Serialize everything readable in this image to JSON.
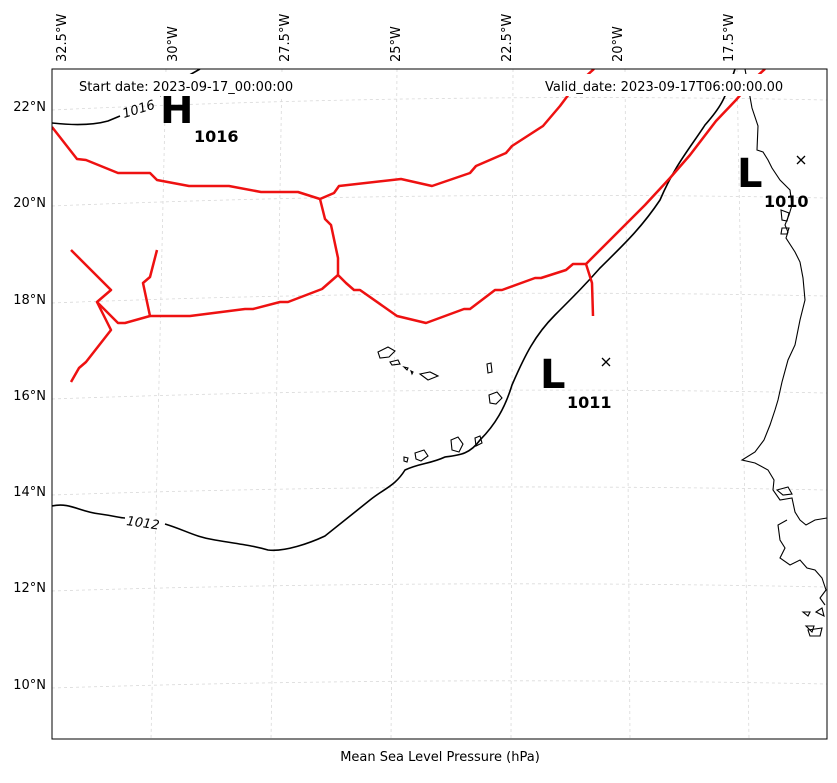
{
  "header": {
    "start_date": "Start date: 2023-09-17_00:00:00",
    "valid_date": "Valid_date: 2023-09-17T06:00:00.00"
  },
  "axis": {
    "xlabel": "Mean Sea Level Pressure (hPa)",
    "lon_labels": [
      "32.5°W",
      "30°W",
      "27.5°W",
      "25°W",
      "22.5°W",
      "20°W",
      "17.5°W"
    ],
    "lat_labels": [
      "22°N",
      "20°N",
      "18°N",
      "16°N",
      "14°N",
      "12°N",
      "10°N"
    ]
  },
  "centers": [
    {
      "type": "H",
      "letter": "H",
      "value": "1016"
    },
    {
      "type": "L",
      "letter": "L",
      "value": "1010"
    },
    {
      "type": "L",
      "letter": "L",
      "value": "1011"
    }
  ],
  "isobar_labels": [
    "1016",
    "1012"
  ],
  "colors": {
    "front": "#ee1111",
    "isobar": "#000000",
    "coast": "#000000",
    "grid": "#d9d9d9"
  }
}
